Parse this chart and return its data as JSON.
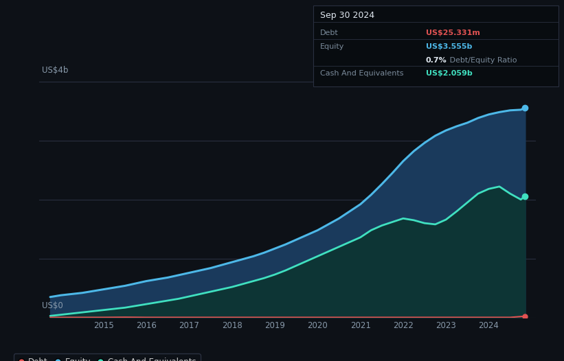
{
  "bg_color": "#0d1117",
  "plot_bg_color": "#0d1117",
  "grid_color": "#2a3040",
  "title_box": {
    "date": "Sep 30 2024",
    "debt_label": "Debt",
    "debt_value": "US$25.331m",
    "debt_color": "#e05252",
    "equity_label": "Equity",
    "equity_value": "US$3.555b",
    "equity_color": "#4db8e8",
    "ratio_bold": "0.7%",
    "ratio_suffix": " Debt/Equity Ratio",
    "cash_label": "Cash And Equivalents",
    "cash_value": "US$2.059b",
    "cash_color": "#40e0c0",
    "box_facecolor": "#080c10",
    "border_color": "#2a3040",
    "label_color": "#7a8a9a",
    "title_color": "#e0e8f0"
  },
  "y_label_top": "US$4b",
  "y_label_bottom": "US$0",
  "ylim": [
    0,
    4.4
  ],
  "xlim": [
    2013.5,
    2025.1
  ],
  "equity_color": "#4db8e8",
  "equity_fill": "#1a3a5c",
  "cash_color": "#40e0c0",
  "cash_fill": "#0d3535",
  "debt_color": "#e05252",
  "legend_items": [
    "Debt",
    "Equity",
    "Cash And Equivalents"
  ],
  "legend_colors": [
    "#e05252",
    "#4db8e8",
    "#40e0c0"
  ],
  "equity_x": [
    2013.75,
    2014.0,
    2014.25,
    2014.5,
    2014.75,
    2015.0,
    2015.25,
    2015.5,
    2015.75,
    2016.0,
    2016.25,
    2016.5,
    2016.75,
    2017.0,
    2017.25,
    2017.5,
    2017.75,
    2018.0,
    2018.25,
    2018.5,
    2018.75,
    2019.0,
    2019.25,
    2019.5,
    2019.75,
    2020.0,
    2020.25,
    2020.5,
    2020.75,
    2021.0,
    2021.25,
    2021.5,
    2021.75,
    2022.0,
    2022.25,
    2022.5,
    2022.75,
    2023.0,
    2023.25,
    2023.5,
    2023.75,
    2024.0,
    2024.25,
    2024.5,
    2024.75,
    2024.85
  ],
  "equity_y": [
    0.35,
    0.38,
    0.4,
    0.42,
    0.45,
    0.48,
    0.51,
    0.54,
    0.58,
    0.62,
    0.65,
    0.68,
    0.72,
    0.76,
    0.8,
    0.84,
    0.89,
    0.94,
    0.99,
    1.04,
    1.1,
    1.17,
    1.24,
    1.32,
    1.4,
    1.48,
    1.58,
    1.68,
    1.8,
    1.92,
    2.08,
    2.26,
    2.45,
    2.65,
    2.82,
    2.96,
    3.08,
    3.17,
    3.24,
    3.3,
    3.38,
    3.44,
    3.48,
    3.51,
    3.52,
    3.555
  ],
  "cash_x": [
    2013.75,
    2014.0,
    2014.25,
    2014.5,
    2014.75,
    2015.0,
    2015.25,
    2015.5,
    2015.75,
    2016.0,
    2016.25,
    2016.5,
    2016.75,
    2017.0,
    2017.25,
    2017.5,
    2017.75,
    2018.0,
    2018.25,
    2018.5,
    2018.75,
    2019.0,
    2019.25,
    2019.5,
    2019.75,
    2020.0,
    2020.25,
    2020.5,
    2020.75,
    2021.0,
    2021.25,
    2021.5,
    2021.75,
    2022.0,
    2022.25,
    2022.5,
    2022.75,
    2023.0,
    2023.25,
    2023.5,
    2023.75,
    2024.0,
    2024.25,
    2024.5,
    2024.75,
    2024.85
  ],
  "cash_y": [
    0.03,
    0.05,
    0.07,
    0.09,
    0.11,
    0.13,
    0.15,
    0.17,
    0.2,
    0.23,
    0.26,
    0.29,
    0.32,
    0.36,
    0.4,
    0.44,
    0.48,
    0.52,
    0.57,
    0.62,
    0.67,
    0.73,
    0.8,
    0.88,
    0.96,
    1.04,
    1.12,
    1.2,
    1.28,
    1.36,
    1.48,
    1.56,
    1.62,
    1.68,
    1.65,
    1.6,
    1.58,
    1.66,
    1.8,
    1.95,
    2.1,
    2.18,
    2.22,
    2.1,
    2.0,
    2.059
  ],
  "debt_x": [
    2013.75,
    2014.0,
    2014.5,
    2015.0,
    2015.5,
    2016.0,
    2016.5,
    2017.0,
    2017.5,
    2018.0,
    2018.5,
    2019.0,
    2019.5,
    2020.0,
    2020.5,
    2021.0,
    2021.5,
    2022.0,
    2022.5,
    2023.0,
    2023.5,
    2024.0,
    2024.5,
    2024.85
  ],
  "debt_y": [
    0.005,
    0.005,
    0.005,
    0.005,
    0.008,
    0.005,
    0.005,
    0.005,
    0.005,
    0.005,
    0.005,
    0.005,
    0.005,
    0.005,
    0.005,
    0.005,
    0.005,
    0.005,
    0.005,
    0.005,
    0.005,
    0.005,
    0.005,
    0.025
  ]
}
